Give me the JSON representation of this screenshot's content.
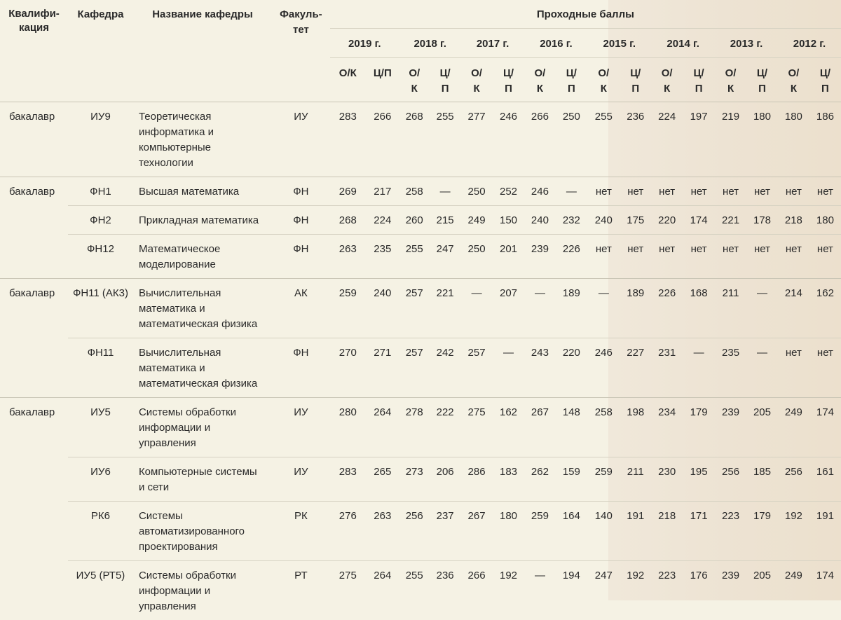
{
  "header": {
    "qualification": "Квалифи-\nкация",
    "qualification_l1": "Квалифи-",
    "qualification_l2": "кация",
    "department": "Кафедра",
    "department_name": "Название кафедры",
    "faculty_l1": "Факуль-",
    "faculty_l2": "тет",
    "passing_scores": "Проходные баллы",
    "years": [
      "2019 г.",
      "2018 г.",
      "2017 г.",
      "2016 г.",
      "2015 г.",
      "2014 г.",
      "2013 г.",
      "2012 г."
    ],
    "sub_ok": [
      "О/К",
      "О/\nК",
      "О/\nК",
      "О/\nК",
      "О/\nК",
      "О/\nК",
      "О/\nК",
      "О/\nК"
    ],
    "sub_cp": [
      "Ц/П",
      "Ц/\nП",
      "Ц/\nП",
      "Ц/\nП",
      "Ц/\nП",
      "Ц/\nП",
      "Ц/\nП",
      "Ц/\nП"
    ]
  },
  "rows": [
    {
      "qual": "бакалавр",
      "dept": "ИУ9",
      "name": "Теоретическая информатика и компьютерные технологии",
      "fac": "ИУ",
      "scores": [
        "283",
        "266",
        "268",
        "255",
        "277",
        "246",
        "266",
        "250",
        "255",
        "236",
        "224",
        "197",
        "219",
        "180",
        "180",
        "186"
      ]
    },
    {
      "qual": "бакалавр",
      "dept": "ФН1",
      "name": "Высшая математика",
      "fac": "ФН",
      "scores": [
        "269",
        "217",
        "258",
        "—",
        "250",
        "252",
        "246",
        "—",
        "нет",
        "нет",
        "нет",
        "нет",
        "нет",
        "нет",
        "нет",
        "нет"
      ]
    },
    {
      "qual": "",
      "dept": "ФН2",
      "name": "Прикладная математика",
      "fac": "ФН",
      "scores": [
        "268",
        "224",
        "260",
        "215",
        "249",
        "150",
        "240",
        "232",
        "240",
        "175",
        "220",
        "174",
        "221",
        "178",
        "218",
        "180"
      ]
    },
    {
      "qual": "",
      "dept": "ФН12",
      "name": "Математическое моделирование",
      "fac": "ФН",
      "scores": [
        "263",
        "235",
        "255",
        "247",
        "250",
        "201",
        "239",
        "226",
        "нет",
        "нет",
        "нет",
        "нет",
        "нет",
        "нет",
        "нет",
        "нет"
      ]
    },
    {
      "qual": "бакалавр",
      "dept": "ФН11 (АК3)",
      "name": "Вычислительная математика и математическая физика",
      "fac": "АК",
      "scores": [
        "259",
        "240",
        "257",
        "221",
        "—",
        "207",
        "—",
        "189",
        "—",
        "189",
        "226",
        "168",
        "211",
        "—",
        "214",
        "162"
      ]
    },
    {
      "qual": "",
      "dept": "ФН11",
      "name": "Вычислительная математика и математическая физика",
      "fac": "ФН",
      "scores": [
        "270",
        "271",
        "257",
        "242",
        "257",
        "—",
        "243",
        "220",
        "246",
        "227",
        "231",
        "—",
        "235",
        "—",
        "нет",
        "нет"
      ]
    },
    {
      "qual": "бакалавр",
      "dept": "ИУ5",
      "name": "Системы обработки информации и управления",
      "fac": "ИУ",
      "scores": [
        "280",
        "264",
        "278",
        "222",
        "275",
        "162",
        "267",
        "148",
        "258",
        "198",
        "234",
        "179",
        "239",
        "205",
        "249",
        "174"
      ]
    },
    {
      "qual": "",
      "dept": "ИУ6",
      "name": "Компьютерные системы и сети",
      "fac": "ИУ",
      "scores": [
        "283",
        "265",
        "273",
        "206",
        "286",
        "183",
        "262",
        "159",
        "259",
        "211",
        "230",
        "195",
        "256",
        "185",
        "256",
        "161"
      ]
    },
    {
      "qual": "",
      "dept": "РК6",
      "name": "Системы автоматизированного проектирования",
      "fac": "РК",
      "scores": [
        "276",
        "263",
        "256",
        "237",
        "267",
        "180",
        "259",
        "164",
        "140",
        "191",
        "218",
        "171",
        "223",
        "179",
        "192",
        "191"
      ]
    },
    {
      "qual": "",
      "dept": "ИУ5 (РТ5)",
      "name": "Системы обработки информации и управления",
      "fac": "РТ",
      "scores": [
        "275",
        "264",
        "255",
        "236",
        "266",
        "192",
        "—",
        "194",
        "247",
        "192",
        "223",
        "176",
        "239",
        "205",
        "249",
        "174"
      ]
    }
  ]
}
